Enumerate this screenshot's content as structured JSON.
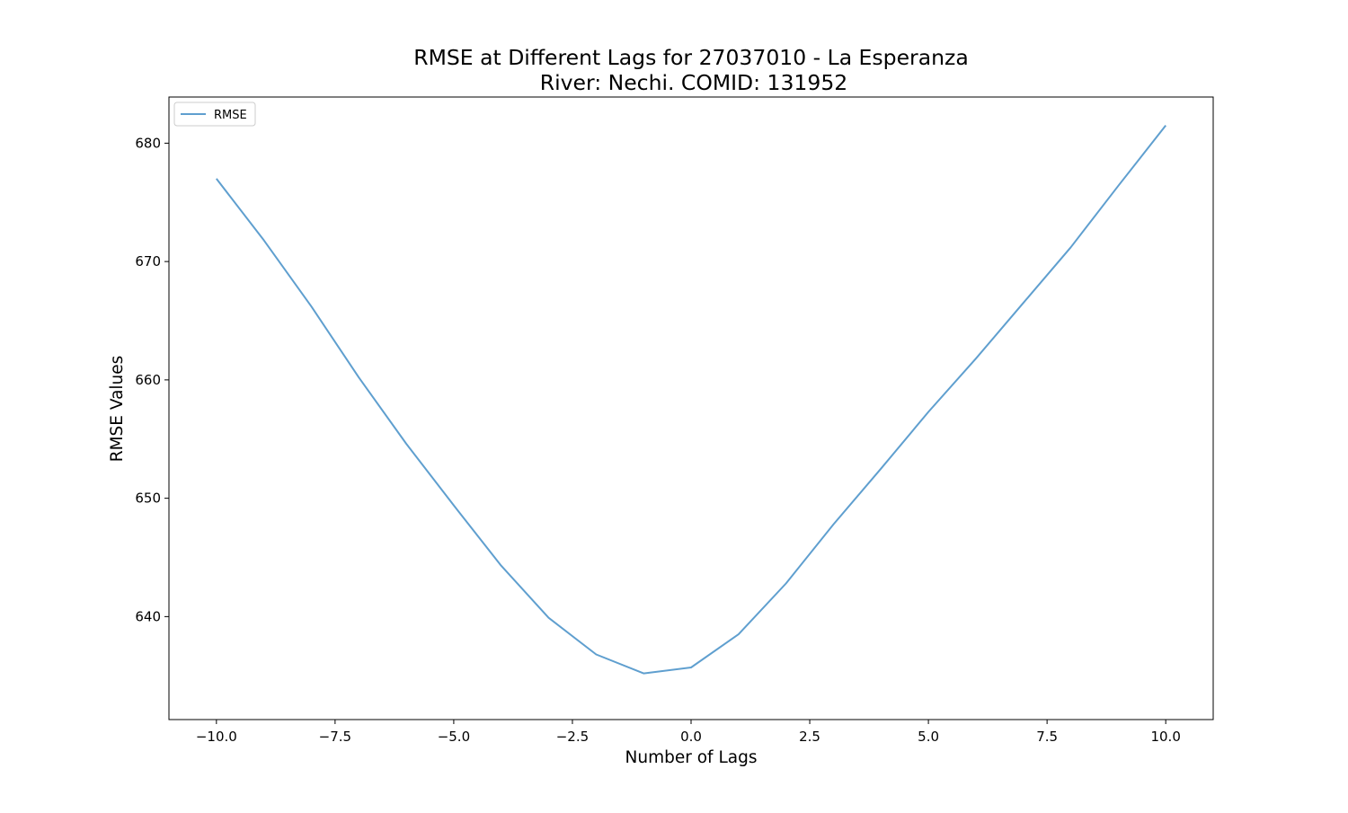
{
  "chart_data": {
    "type": "line",
    "title_line1": "RMSE at Different Lags for 27037010 - La Esperanza",
    "title_line2": "River: Nechi. COMID: 131952",
    "xlabel": "Number of Lags",
    "ylabel": "RMSE Values",
    "xlim": [
      -11.0,
      11.0
    ],
    "ylim": [
      631.3,
      683.9
    ],
    "x_ticks": [
      -10.0,
      -7.5,
      -5.0,
      -2.5,
      0.0,
      2.5,
      5.0,
      7.5,
      10.0
    ],
    "x_tick_labels": [
      "−10.0",
      "−7.5",
      "−5.0",
      "−2.5",
      "0.0",
      "2.5",
      "5.0",
      "7.5",
      "10.0"
    ],
    "y_ticks": [
      640,
      650,
      660,
      670,
      680
    ],
    "y_tick_labels": [
      "640",
      "650",
      "660",
      "670",
      "680"
    ],
    "legend_position": "upper-left",
    "grid": false,
    "series": [
      {
        "name": "RMSE",
        "color": "#5f9fcf",
        "x": [
          -10,
          -9,
          -8,
          -7,
          -6,
          -5,
          -4,
          -3,
          -2,
          -1,
          0,
          1,
          2,
          3,
          4,
          5,
          6,
          7,
          8,
          9,
          10
        ],
        "values": [
          677.0,
          671.8,
          666.2,
          660.2,
          654.6,
          649.4,
          644.3,
          639.9,
          636.8,
          635.2,
          635.7,
          638.5,
          642.8,
          647.8,
          652.5,
          657.3,
          661.8,
          666.5,
          671.2,
          676.4,
          681.5
        ]
      }
    ]
  }
}
